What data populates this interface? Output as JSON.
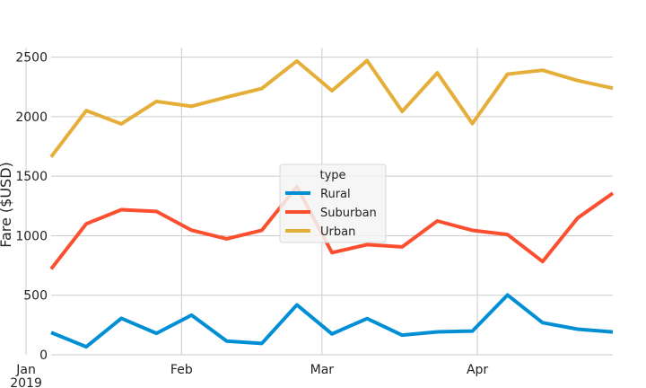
{
  "chart_data": {
    "type": "line",
    "title": "",
    "xlabel": "",
    "ylabel": "Fare ($USD)",
    "x_ticks": [
      {
        "date": "2019-01-01",
        "label": "Jan",
        "sublabel": "2019"
      },
      {
        "date": "2019-02-01",
        "label": "Feb",
        "sublabel": ""
      },
      {
        "date": "2019-03-01",
        "label": "Mar",
        "sublabel": ""
      },
      {
        "date": "2019-04-01",
        "label": "Apr",
        "sublabel": ""
      }
    ],
    "y_ticks": [
      0,
      500,
      1000,
      1500,
      2000,
      2500
    ],
    "xlim": [
      "2019-01-06",
      "2019-04-28"
    ],
    "ylim": [
      0,
      2580
    ],
    "grid": true,
    "legend": {
      "title": "type",
      "position": "center"
    },
    "x": [
      "2019-01-06",
      "2019-01-13",
      "2019-01-20",
      "2019-01-27",
      "2019-02-03",
      "2019-02-10",
      "2019-02-17",
      "2019-02-24",
      "2019-03-03",
      "2019-03-10",
      "2019-03-17",
      "2019-03-24",
      "2019-03-31",
      "2019-04-07",
      "2019-04-14",
      "2019-04-21",
      "2019-04-28"
    ],
    "series": [
      {
        "name": "Rural",
        "color": "#008fd5",
        "values": [
          187,
          67,
          306,
          180,
          333,
          115,
          95,
          419,
          175,
          304,
          165,
          192,
          199,
          502,
          269,
          215,
          191
        ]
      },
      {
        "name": "Suburban",
        "color": "#fc4f30",
        "values": [
          721,
          1100,
          1218,
          1204,
          1046,
          974,
          1045,
          1412,
          858,
          925,
          906,
          1124,
          1045,
          1010,
          783,
          1149,
          1357
        ]
      },
      {
        "name": "Urban",
        "color": "#e5ae38",
        "values": [
          1662,
          2051,
          1939,
          2128,
          2087,
          2164,
          2236,
          2467,
          2218,
          2471,
          2044,
          2368,
          1942,
          2357,
          2390,
          2303,
          2239
        ]
      }
    ]
  }
}
